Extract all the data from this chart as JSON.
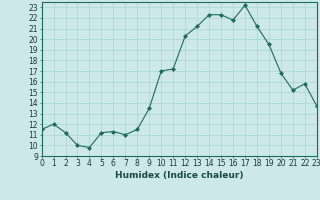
{
  "x": [
    0,
    1,
    2,
    3,
    4,
    5,
    6,
    7,
    8,
    9,
    10,
    11,
    12,
    13,
    14,
    15,
    16,
    17,
    18,
    19,
    20,
    21,
    22,
    23
  ],
  "y": [
    11.5,
    12.0,
    11.2,
    10.0,
    9.8,
    11.2,
    11.3,
    11.0,
    11.5,
    13.5,
    17.0,
    17.2,
    20.3,
    21.2,
    22.3,
    22.3,
    21.8,
    23.2,
    21.2,
    19.5,
    16.8,
    15.2,
    15.8,
    13.7
  ],
  "xlabel": "Humidex (Indice chaleur)",
  "bg_color": "#cce8e8",
  "grid_color": "#aad4d4",
  "line_color": "#1e6b5e",
  "marker_color": "#1e6b5e",
  "xlim": [
    0,
    23
  ],
  "ylim": [
    9,
    23.5
  ],
  "yticks": [
    9,
    10,
    11,
    12,
    13,
    14,
    15,
    16,
    17,
    18,
    19,
    20,
    21,
    22,
    23
  ],
  "xticks": [
    0,
    1,
    2,
    3,
    4,
    5,
    6,
    7,
    8,
    9,
    10,
    11,
    12,
    13,
    14,
    15,
    16,
    17,
    18,
    19,
    20,
    21,
    22,
    23
  ],
  "label_fontsize": 6.5,
  "tick_fontsize": 5.5
}
